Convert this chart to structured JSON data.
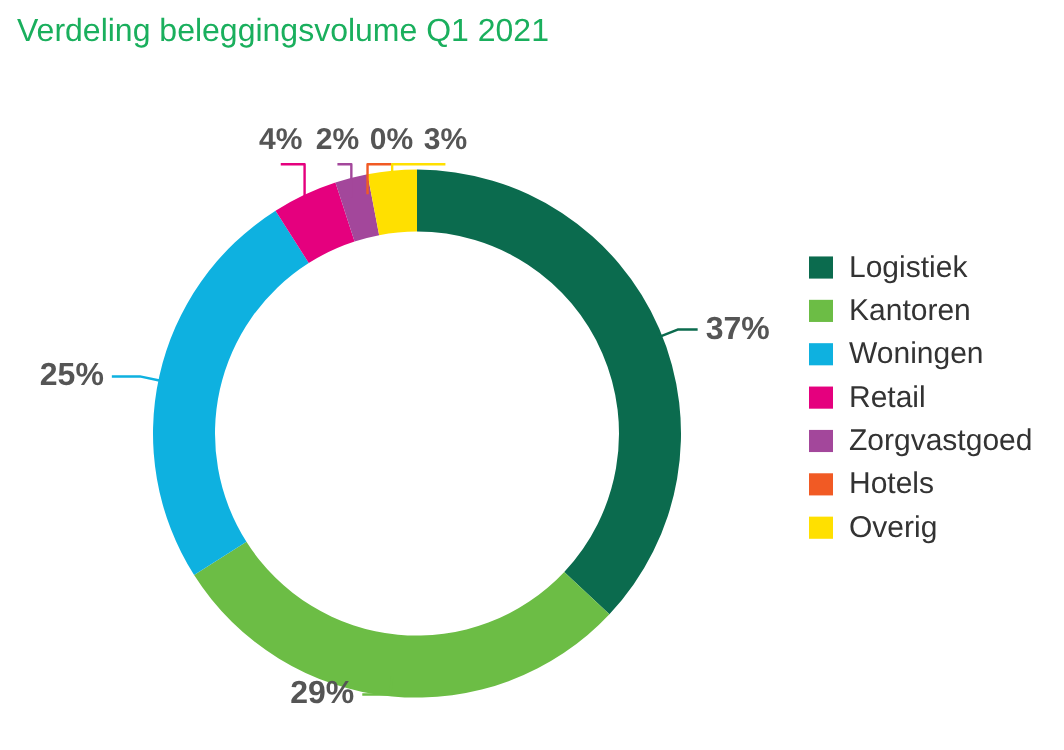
{
  "chart_data": {
    "type": "donut",
    "title": "Verdeling beleggingsvolume Q1 2021",
    "categories": [
      "Logistiek",
      "Kantoren",
      "Woningen",
      "Retail",
      "Zorgvastgoed",
      "Hotels",
      "Overig"
    ],
    "values": [
      37,
      29,
      25,
      4,
      2,
      0,
      3
    ],
    "colors": [
      "#0b6b4e",
      "#6cbd45",
      "#0eb1e0",
      "#e5007e",
      "#a3479b",
      "#f15a24",
      "#ffe000"
    ],
    "value_labels": [
      "37%",
      "29%",
      "25%",
      "4%",
      "2%",
      "0%",
      "3%"
    ],
    "legend": "right"
  }
}
